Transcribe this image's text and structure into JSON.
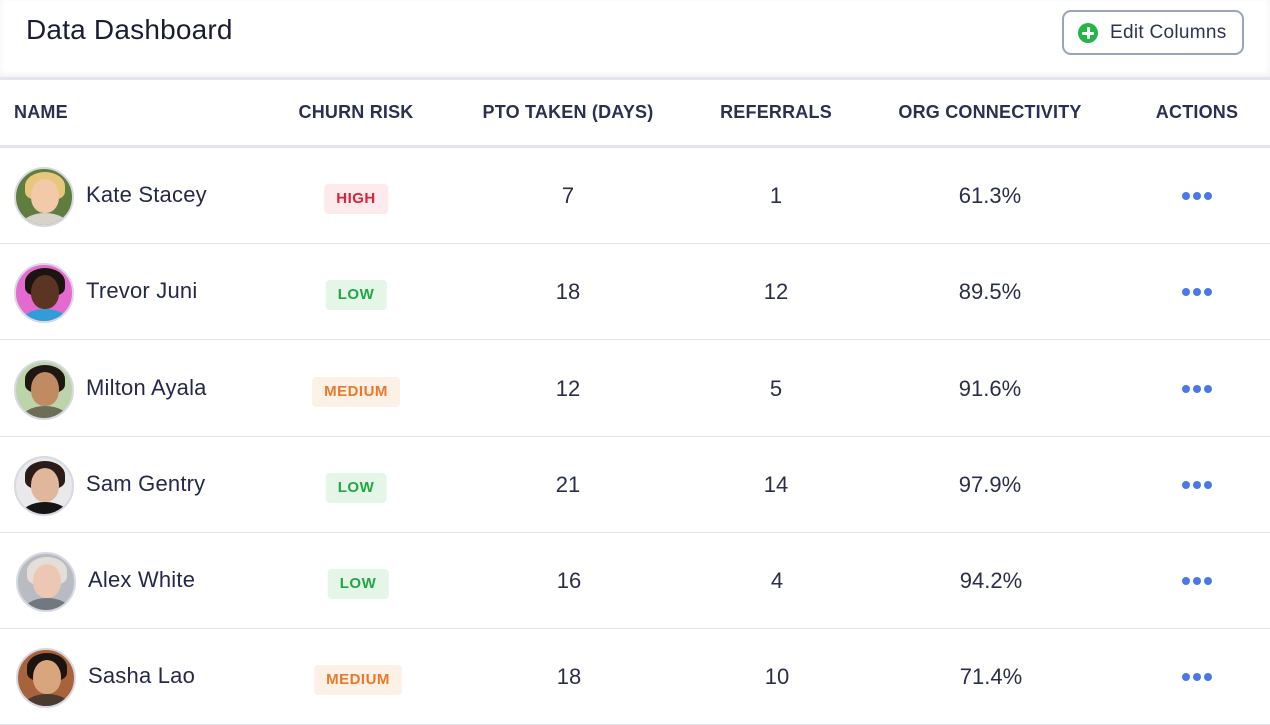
{
  "header": {
    "title": "Data Dashboard",
    "edit_button_label": "Edit Columns",
    "edit_button_icon": "plus-circle-icon",
    "accent": "#23b44a"
  },
  "columns": {
    "name": "NAME",
    "churn": "CHURN RISK",
    "pto": "PTO TAKEN (DAYS)",
    "referrals": "REFERRALS",
    "org": "ORG CONNECTIVITY",
    "actions": "ACTIONS"
  },
  "rows": [
    {
      "name": "Kate Stacey",
      "churn": "HIGH",
      "churn_level": "high",
      "pto": "7",
      "referrals": "1",
      "org": "61.3%",
      "avatar_bg": "#5f7d3f",
      "hair": "#e8c77c",
      "skin": "#f2c9a9",
      "shirt": "#d8d3c8"
    },
    {
      "name": "Trevor Juni",
      "churn": "LOW",
      "churn_level": "low",
      "pto": "18",
      "referrals": "12",
      "org": "89.5%",
      "avatar_bg": "#e46ad0",
      "hair": "#1d1410",
      "skin": "#5b3423",
      "shirt": "#2e9dd8"
    },
    {
      "name": "Milton Ayala",
      "churn": "MEDIUM",
      "churn_level": "medium",
      "pto": "12",
      "referrals": "5",
      "org": "91.6%",
      "avatar_bg": "#bcd4a9",
      "hair": "#1f1812",
      "skin": "#c08b63",
      "shirt": "#6c6f55"
    },
    {
      "name": "Sam Gentry",
      "churn": "LOW",
      "churn_level": "low",
      "pto": "21",
      "referrals": "14",
      "org": "97.9%",
      "avatar_bg": "#e9e9eb",
      "hair": "#2a1c18",
      "skin": "#e0b69c",
      "shirt": "#151515"
    },
    {
      "name": "Alex White",
      "churn": "LOW",
      "churn_level": "low",
      "pto": "16",
      "referrals": "4",
      "org": "94.2%",
      "avatar_bg": "#b8bcc2",
      "hair": "#e3dfd8",
      "skin": "#ecc8b4",
      "shirt": "#727880"
    },
    {
      "name": "Sasha Lao",
      "churn": "MEDIUM",
      "churn_level": "medium",
      "pto": "18",
      "referrals": "10",
      "org": "71.4%",
      "avatar_bg": "#a8623c",
      "hair": "#1c1410",
      "skin": "#d9a57d",
      "shirt": "#4b3a2e"
    }
  ],
  "colors": {
    "high_text": "#d9233a",
    "low_text": "#23a544",
    "medium_text": "#e8782b",
    "action_dots": "#4a78e8"
  }
}
